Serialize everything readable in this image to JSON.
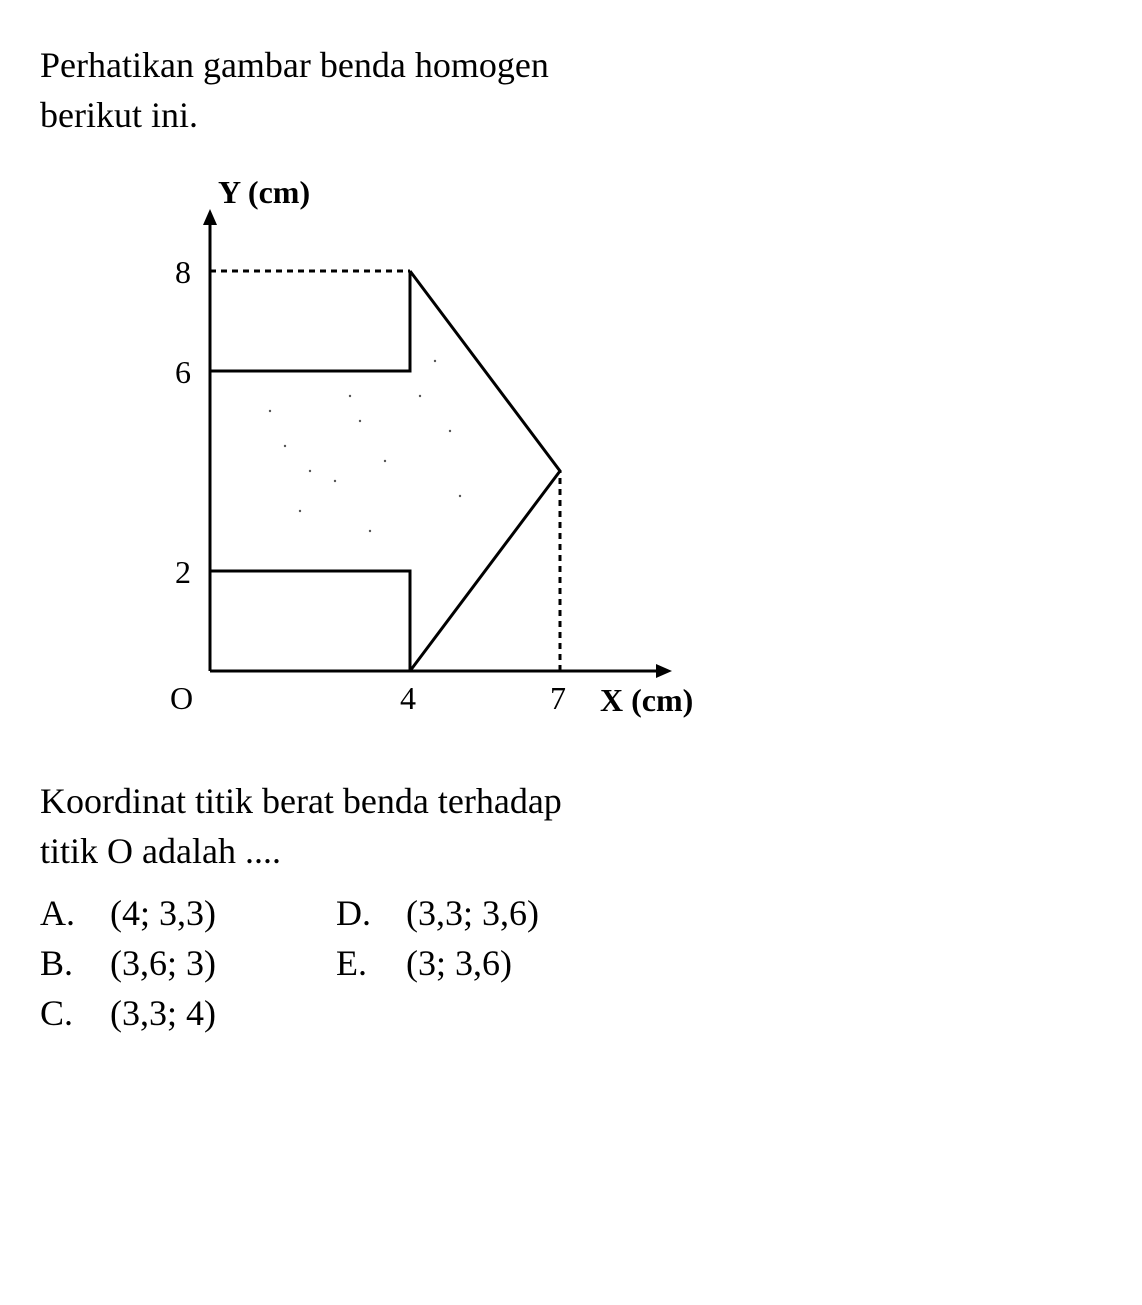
{
  "question": {
    "intro_line1": "Perhatikan gambar benda homogen",
    "intro_line2": "berikut ini."
  },
  "chart": {
    "type": "diagram",
    "x_axis_label": "X (cm)",
    "y_axis_label": "Y (cm)",
    "origin_label": "O",
    "x_ticks": [
      {
        "value": 4,
        "label": "4"
      },
      {
        "value": 7,
        "label": "7"
      }
    ],
    "y_ticks": [
      {
        "value": 2,
        "label": "2"
      },
      {
        "value": 6,
        "label": "6"
      },
      {
        "value": 8,
        "label": "8"
      }
    ],
    "arrow_shape_vertices": [
      [
        0,
        0
      ],
      [
        4,
        0
      ],
      [
        4,
        2
      ],
      [
        0,
        2
      ],
      [
        0,
        6
      ],
      [
        4,
        6
      ],
      [
        4,
        8
      ],
      [
        7,
        4
      ],
      [
        4,
        0
      ]
    ],
    "outline_vertices": [
      [
        0,
        0
      ],
      [
        4,
        0
      ],
      [
        7,
        4
      ],
      [
        4,
        8
      ],
      [
        0,
        8
      ],
      [
        0,
        6
      ],
      [
        4,
        6
      ],
      [
        4,
        2
      ],
      [
        0,
        2
      ]
    ],
    "dashed_lines": [
      {
        "from": [
          0,
          8
        ],
        "to": [
          4,
          8
        ]
      },
      {
        "from": [
          7,
          0
        ],
        "to": [
          7,
          4
        ]
      }
    ],
    "stroke_color": "#000000",
    "stroke_width": 3,
    "dash_pattern": "6,5",
    "background_color": "#ffffff",
    "axis_arrow_size": 12,
    "font_size": 32,
    "x_range": [
      0,
      9
    ],
    "y_range": [
      0,
      9
    ],
    "scale": 50
  },
  "prompt": {
    "line1": "Koordinat titik berat benda terhadap",
    "line2": "titik O adalah ...."
  },
  "options": {
    "col1": [
      {
        "letter": "A.",
        "value": "(4; 3,3)"
      },
      {
        "letter": "B.",
        "value": "(3,6; 3)"
      },
      {
        "letter": "C.",
        "value": "(3,3; 4)"
      }
    ],
    "col2": [
      {
        "letter": "D.",
        "value": "(3,3; 3,6)"
      },
      {
        "letter": "E.",
        "value": "(3; 3,6)"
      }
    ]
  }
}
